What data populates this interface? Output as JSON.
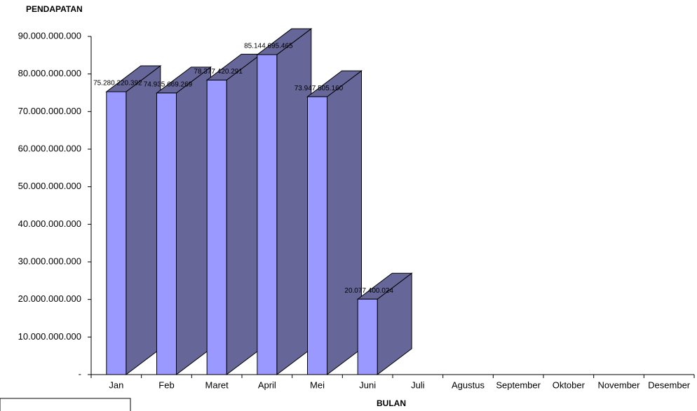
{
  "chart_data": {
    "type": "bar3d",
    "y_label": "PENDAPATAN",
    "x_label": "BULAN",
    "categories": [
      "Jan",
      "Feb",
      "Maret",
      "April",
      "Mei",
      "Juni",
      "Juli",
      "Agustus",
      "September",
      "Oktober",
      "November",
      "Desember"
    ],
    "values": [
      75280220392,
      74935669269,
      78377420291,
      85144695465,
      73947505160,
      20077400024,
      null,
      null,
      null,
      null,
      null,
      null
    ],
    "value_labels": [
      "75.280.220.392",
      "74.935.669.269",
      "78.377.420.291",
      "85.144.695.465",
      "73.947.505.160",
      "20.077.400.024",
      null,
      null,
      null,
      null,
      null,
      null
    ],
    "color": "#9999ff",
    "side_color": "#666699",
    "ylim": [
      0,
      90000000000
    ],
    "yticks": [
      {
        "value": 0,
        "label": "-"
      },
      {
        "value": 10000000000,
        "label": "10.000.000.000"
      },
      {
        "value": 20000000000,
        "label": "20.000.000.000"
      },
      {
        "value": 30000000000,
        "label": "30.000.000.000"
      },
      {
        "value": 40000000000,
        "label": "40.000.000.000"
      },
      {
        "value": 50000000000,
        "label": "50.000.000.000"
      },
      {
        "value": 60000000000,
        "label": "60.000.000.000"
      },
      {
        "value": 70000000000,
        "label": "70.000.000.000"
      },
      {
        "value": 80000000000,
        "label": "80.000.000.000"
      },
      {
        "value": 90000000000,
        "label": "90.000.000.000"
      }
    ]
  }
}
